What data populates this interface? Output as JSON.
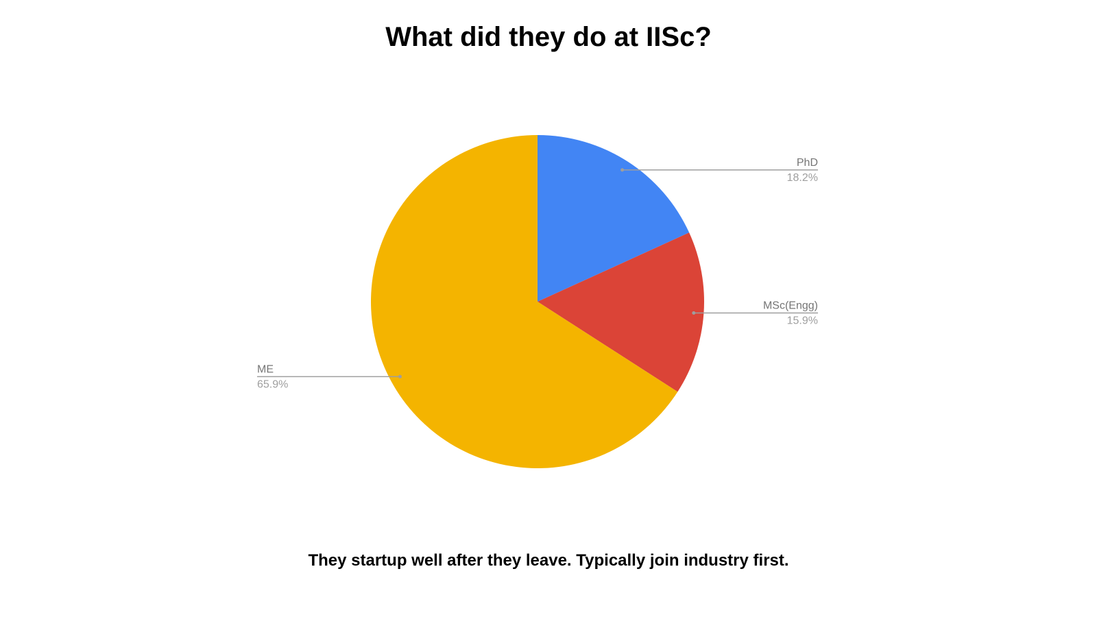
{
  "chart_data": {
    "type": "pie",
    "title": "What did they do at IISc?",
    "caption": "They startup well after they leave. Typically join industry first.",
    "start_angle": "top, clockwise",
    "legend": "none (leader-line labels)",
    "slices": [
      {
        "label": "PhD",
        "value": 18.2,
        "value_label": "18.2%",
        "color": "#4285f4"
      },
      {
        "label": "MSc(Engg)",
        "value": 15.9,
        "value_label": "15.9%",
        "color": "#db4437"
      },
      {
        "label": "ME",
        "value": 65.9,
        "value_label": "65.9%",
        "color": "#f4b400"
      }
    ]
  }
}
